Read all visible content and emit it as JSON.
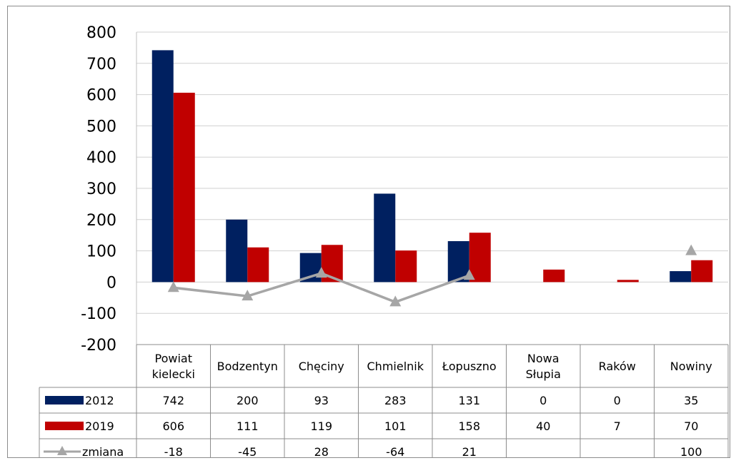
{
  "chart_data": {
    "type": "bar",
    "categories": [
      "Powiat kielecki",
      "Bodzentyn",
      "Chęciny",
      "Chmielnik",
      "Łopuszno",
      "Nowa Słupia",
      "Raków",
      "Nowiny"
    ],
    "category_lines": [
      [
        "Powiat",
        "kielecki"
      ],
      [
        "Bodzentyn"
      ],
      [
        "Chęciny"
      ],
      [
        "Chmielnik"
      ],
      [
        "Łopuszno"
      ],
      [
        "Nowa",
        "Słupia"
      ],
      [
        "Raków"
      ],
      [
        "Nowiny"
      ]
    ],
    "series": [
      {
        "name": "2012",
        "kind": "bar",
        "color": "#002060",
        "values": [
          742,
          200,
          93,
          283,
          131,
          0,
          0,
          35
        ]
      },
      {
        "name": "2019",
        "kind": "bar",
        "color": "#C00000",
        "values": [
          606,
          111,
          119,
          101,
          158,
          40,
          7,
          70
        ]
      },
      {
        "name": "zmiana",
        "kind": "line",
        "color": "#A6A6A6",
        "marker": "triangle",
        "values": [
          -18,
          -45,
          28,
          -64,
          21,
          null,
          null,
          100
        ]
      }
    ],
    "ylim": [
      -200,
      800
    ],
    "yticks": [
      -200,
      -100,
      0,
      100,
      200,
      300,
      400,
      500,
      600,
      700,
      800
    ],
    "grid": true,
    "legend": "data-table",
    "data_table": true
  }
}
